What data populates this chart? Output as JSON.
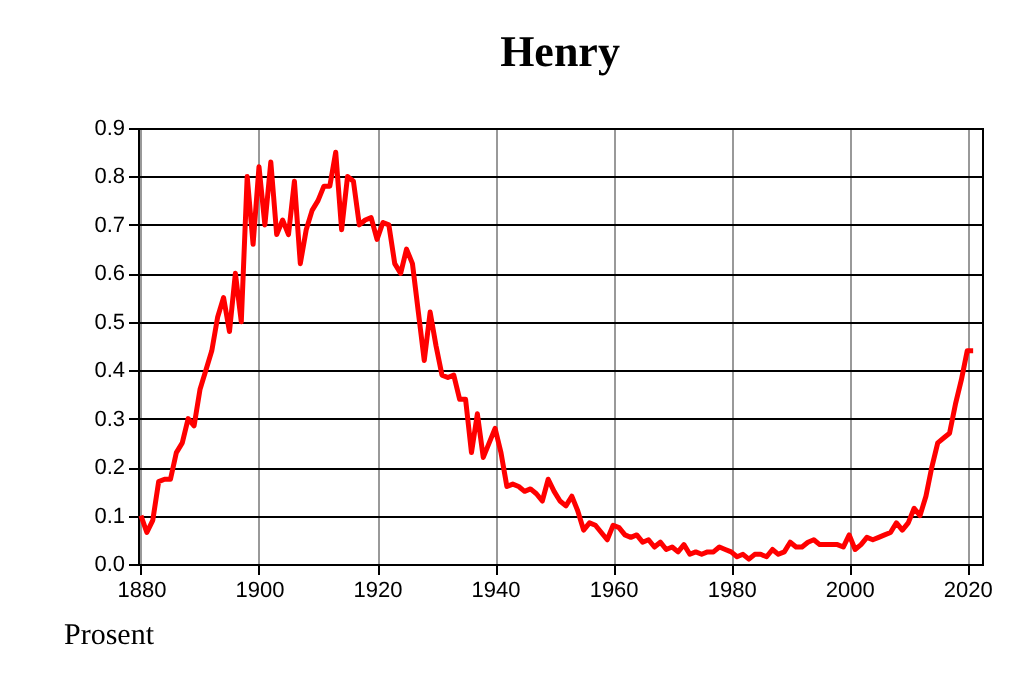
{
  "chart_data": {
    "type": "line",
    "title": "Henry",
    "annotations": [
      "Prosent"
    ],
    "x": [
      1880,
      1881,
      1882,
      1883,
      1884,
      1885,
      1886,
      1887,
      1888,
      1889,
      1890,
      1891,
      1892,
      1893,
      1894,
      1895,
      1896,
      1897,
      1898,
      1899,
      1900,
      1901,
      1902,
      1903,
      1904,
      1905,
      1906,
      1907,
      1908,
      1909,
      1910,
      1911,
      1912,
      1913,
      1914,
      1915,
      1916,
      1917,
      1918,
      1919,
      1920,
      1921,
      1922,
      1923,
      1924,
      1925,
      1926,
      1927,
      1928,
      1929,
      1930,
      1931,
      1932,
      1933,
      1934,
      1935,
      1936,
      1937,
      1938,
      1939,
      1940,
      1941,
      1942,
      1943,
      1944,
      1945,
      1946,
      1947,
      1948,
      1949,
      1950,
      1951,
      1952,
      1953,
      1954,
      1955,
      1956,
      1957,
      1958,
      1959,
      1960,
      1961,
      1962,
      1963,
      1964,
      1965,
      1966,
      1967,
      1968,
      1969,
      1970,
      1971,
      1972,
      1973,
      1974,
      1975,
      1976,
      1977,
      1978,
      1979,
      1980,
      1981,
      1982,
      1983,
      1984,
      1985,
      1986,
      1987,
      1988,
      1989,
      1990,
      1991,
      1992,
      1993,
      1994,
      1995,
      1996,
      1997,
      1998,
      1999,
      2000,
      2001,
      2002,
      2003,
      2004,
      2005,
      2006,
      2007,
      2008,
      2009,
      2010,
      2011,
      2012,
      2013,
      2014,
      2015,
      2016,
      2017,
      2018,
      2019,
      2020,
      2021
    ],
    "series": [
      {
        "color": "#ff0000",
        "values": [
          0.1,
          0.065,
          0.09,
          0.17,
          0.175,
          0.175,
          0.23,
          0.25,
          0.3,
          0.285,
          0.36,
          0.4,
          0.44,
          0.51,
          0.55,
          0.48,
          0.6,
          0.5,
          0.8,
          0.66,
          0.82,
          0.7,
          0.83,
          0.68,
          0.71,
          0.68,
          0.79,
          0.62,
          0.69,
          0.73,
          0.75,
          0.78,
          0.78,
          0.85,
          0.69,
          0.8,
          0.79,
          0.7,
          0.71,
          0.715,
          0.67,
          0.705,
          0.7,
          0.62,
          0.6,
          0.65,
          0.62,
          0.52,
          0.42,
          0.52,
          0.45,
          0.39,
          0.385,
          0.39,
          0.34,
          0.34,
          0.23,
          0.31,
          0.22,
          0.25,
          0.28,
          0.23,
          0.16,
          0.165,
          0.16,
          0.15,
          0.155,
          0.145,
          0.13,
          0.175,
          0.15,
          0.13,
          0.12,
          0.14,
          0.11,
          0.07,
          0.085,
          0.08,
          0.065,
          0.05,
          0.08,
          0.075,
          0.06,
          0.055,
          0.06,
          0.045,
          0.05,
          0.035,
          0.045,
          0.03,
          0.035,
          0.025,
          0.04,
          0.02,
          0.025,
          0.02,
          0.025,
          0.025,
          0.035,
          0.03,
          0.025,
          0.015,
          0.02,
          0.01,
          0.02,
          0.02,
          0.015,
          0.03,
          0.02,
          0.025,
          0.045,
          0.035,
          0.035,
          0.045,
          0.05,
          0.04,
          0.04,
          0.04,
          0.04,
          0.035,
          0.06,
          0.03,
          0.04,
          0.055,
          0.05,
          0.055,
          0.06,
          0.065,
          0.085,
          0.07,
          0.085,
          0.115,
          0.1,
          0.14,
          0.2,
          0.25,
          0.26,
          0.27,
          0.33,
          0.38,
          0.44,
          0.44
        ]
      }
    ],
    "xlim": [
      1879.5,
      2022.5
    ],
    "xticks": [
      1880,
      1900,
      1920,
      1940,
      1960,
      1980,
      2000,
      2020
    ],
    "ylim": [
      0,
      0.9
    ],
    "yticks": [
      {
        "value": 0,
        "label": "0.0"
      },
      0.1,
      0.2,
      0.3,
      0.4,
      0.5,
      0.6,
      0.7,
      0.8,
      0.9
    ],
    "grid": true,
    "legend": false,
    "marker": "none",
    "line_style": "solid"
  }
}
